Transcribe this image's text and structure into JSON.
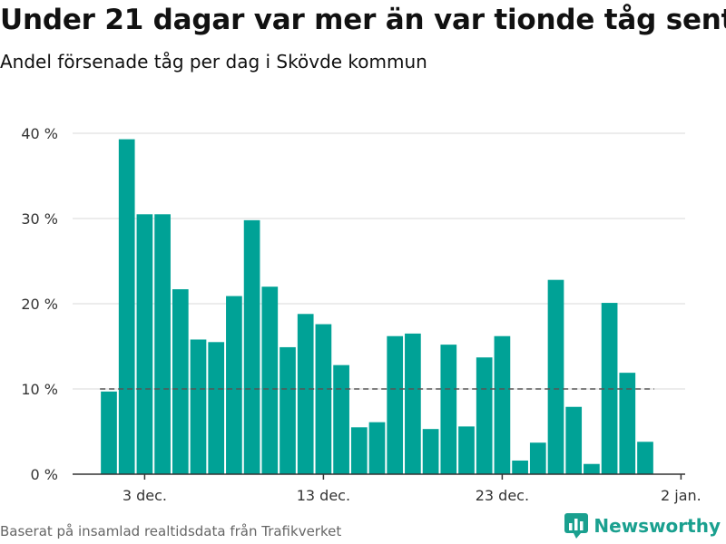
{
  "title": "Under 21 dagar var mer än var tionde tåg sent",
  "subtitle": "Andel försenade tåg per dag i Skövde kommun",
  "footer": "Baserat på insamlad realtidsdata från Trafikverket",
  "logo_text": "Newsworthy",
  "colors": {
    "bar": "#00a296",
    "grid": "#d9d9d9",
    "reference": "#555555",
    "axis": "#333333",
    "brand": "#1aa08f"
  },
  "chart_data": {
    "type": "bar",
    "x": [
      "2021-12-01",
      "2021-12-02",
      "2021-12-03",
      "2021-12-04",
      "2021-12-05",
      "2021-12-06",
      "2021-12-07",
      "2021-12-08",
      "2021-12-09",
      "2021-12-10",
      "2021-12-11",
      "2021-12-12",
      "2021-12-13",
      "2021-12-14",
      "2021-12-15",
      "2021-12-16",
      "2021-12-17",
      "2021-12-18",
      "2021-12-19",
      "2021-12-20",
      "2021-12-21",
      "2021-12-22",
      "2021-12-23",
      "2021-12-24",
      "2021-12-25",
      "2021-12-26",
      "2021-12-27",
      "2021-12-28",
      "2021-12-29",
      "2021-12-30",
      "2021-12-31"
    ],
    "values": [
      9.7,
      39.3,
      30.5,
      30.5,
      21.7,
      15.8,
      15.5,
      20.9,
      29.8,
      22.0,
      14.9,
      18.8,
      17.6,
      12.8,
      5.5,
      6.1,
      16.2,
      16.5,
      5.3,
      15.2,
      5.6,
      13.7,
      16.2,
      1.6,
      3.7,
      22.8,
      7.9,
      1.2,
      20.1,
      11.9,
      3.8
    ],
    "x_ticks": [
      {
        "date": "2021-12-03",
        "label": "3 dec."
      },
      {
        "date": "2021-12-13",
        "label": "13 dec."
      },
      {
        "date": "2021-12-23",
        "label": "23 dec."
      },
      {
        "date": "2022-01-02",
        "label": "2 jan."
      }
    ],
    "y_ticks": [
      {
        "value": 0,
        "label": "0 %"
      },
      {
        "value": 10,
        "label": "10 %"
      },
      {
        "value": 20,
        "label": "20 %"
      },
      {
        "value": 30,
        "label": "30 %"
      },
      {
        "value": 40,
        "label": "40 %"
      }
    ],
    "ylim": [
      0,
      40
    ],
    "reference_line": 10,
    "grid": true
  }
}
